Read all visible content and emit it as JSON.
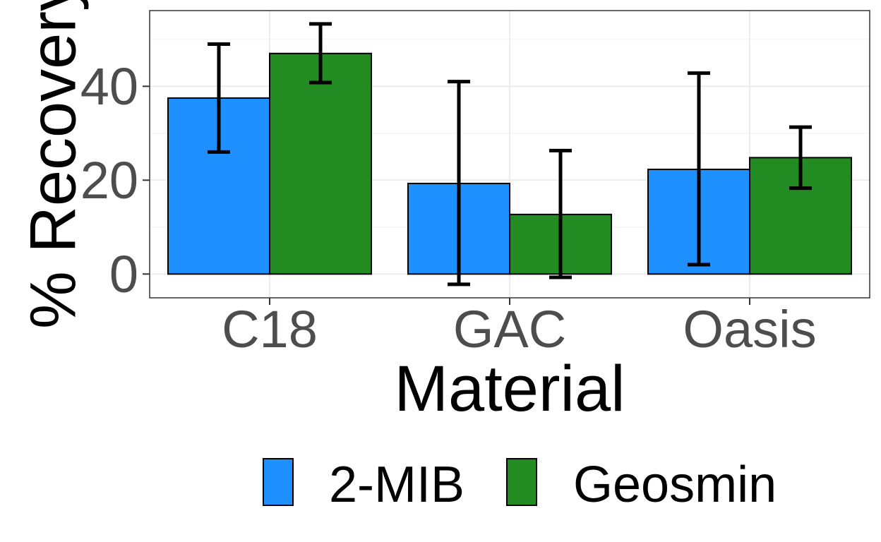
{
  "chart_data": {
    "type": "bar",
    "categories": [
      "C18",
      "GAC",
      "Oasis"
    ],
    "series": [
      {
        "name": "2-MIB",
        "color": "#1E90FF",
        "values": [
          37.5,
          19.3,
          22.3
        ],
        "error_low": [
          26.0,
          -2.2,
          2.0
        ],
        "error_high": [
          49.0,
          41.0,
          42.8
        ]
      },
      {
        "name": "Geosmin",
        "color": "#228B22",
        "values": [
          47.0,
          12.7,
          24.8
        ],
        "error_low": [
          40.8,
          -0.7,
          18.3
        ],
        "error_high": [
          53.3,
          26.3,
          31.3
        ]
      }
    ],
    "xlabel": "Material",
    "ylabel": "% Recovery",
    "ylim": [
      -5,
      56
    ],
    "yticks": [
      0,
      20,
      40
    ],
    "ytick_labels": [
      "0",
      "20",
      "40"
    ],
    "grid": true,
    "legend_position": "bottom"
  }
}
